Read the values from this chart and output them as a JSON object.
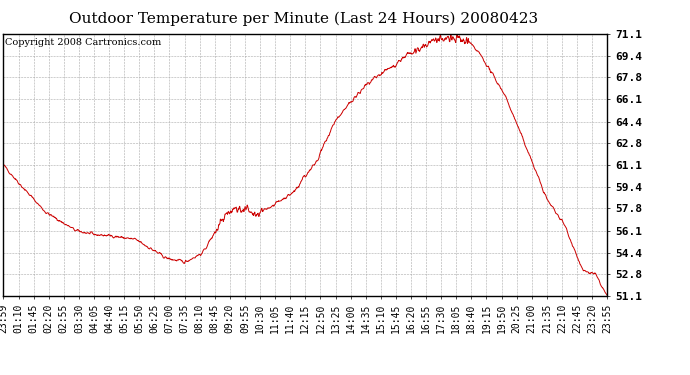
{
  "title": "Outdoor Temperature per Minute (Last 24 Hours) 20080423",
  "copyright_text": "Copyright 2008 Cartronics.com",
  "line_color": "#cc0000",
  "background_color": "#ffffff",
  "grid_color": "#aaaaaa",
  "ylim": [
    51.1,
    71.1
  ],
  "yticks": [
    51.1,
    52.8,
    54.4,
    56.1,
    57.8,
    59.4,
    61.1,
    62.8,
    64.4,
    66.1,
    67.8,
    69.4,
    71.1
  ],
  "xtick_labels": [
    "23:59",
    "01:10",
    "01:45",
    "02:20",
    "02:55",
    "03:30",
    "04:05",
    "04:40",
    "05:15",
    "05:50",
    "06:25",
    "07:00",
    "07:35",
    "08:10",
    "08:45",
    "09:20",
    "09:55",
    "10:30",
    "11:05",
    "11:40",
    "12:15",
    "12:50",
    "13:25",
    "14:00",
    "14:35",
    "15:10",
    "15:45",
    "16:20",
    "16:55",
    "17:30",
    "18:05",
    "18:40",
    "19:15",
    "19:50",
    "20:25",
    "21:00",
    "21:35",
    "22:10",
    "22:45",
    "23:20",
    "23:55"
  ],
  "title_fontsize": 11,
  "copyright_fontsize": 7,
  "tick_fontsize": 7,
  "ytick_fontsize": 8
}
